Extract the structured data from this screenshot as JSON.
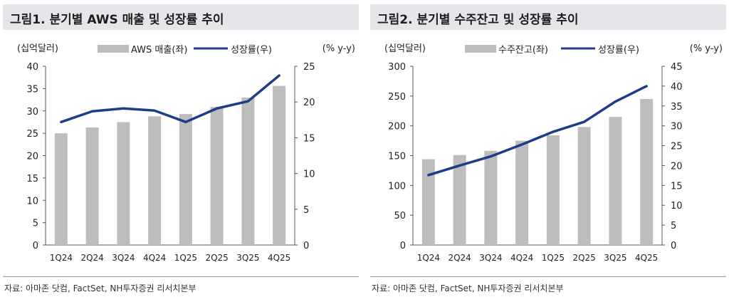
{
  "colors": {
    "bar": "#bdbdbd",
    "line": "#1f3c88",
    "axis": "#555555",
    "title_bg": "#e4e6ea"
  },
  "chart_data": [
    {
      "title": "그림1. 분기별 AWS 매출 및 성장률 추이",
      "type": "bar+line",
      "categories": [
        "1Q24",
        "2Q24",
        "3Q24",
        "4Q24",
        "1Q25",
        "2Q25",
        "3Q25",
        "4Q25"
      ],
      "series": [
        {
          "name": "AWS 매출(좌)",
          "type": "bar",
          "axis": "left",
          "values": [
            25.0,
            26.3,
            27.5,
            28.8,
            29.3,
            30.9,
            33.0,
            35.6
          ]
        },
        {
          "name": "성장률(우)",
          "type": "line",
          "axis": "right",
          "values": [
            17.2,
            18.7,
            19.1,
            18.8,
            17.2,
            19.1,
            20.1,
            23.7
          ]
        }
      ],
      "ylabel_left": "(십억달러)",
      "ylabel_right": "(% y-y)",
      "ylim_left": [
        0,
        40
      ],
      "ylim_right": [
        0,
        25
      ],
      "yticks_left": [
        "0",
        "5",
        "10",
        "15",
        "20",
        "25",
        "30",
        "35",
        "40"
      ],
      "yticks_right": [
        "0",
        "5",
        "10",
        "15",
        "20",
        "25"
      ],
      "legend": "top-right",
      "source": "자료: 아마존 닷컴, FactSet, NH투자증권 리서치본부"
    },
    {
      "title": "그림2. 분기별 수주잔고 및 성장률 추이",
      "type": "bar+line",
      "categories": [
        "1Q24",
        "2Q24",
        "3Q24",
        "4Q24",
        "1Q25",
        "2Q25",
        "3Q25",
        "4Q25"
      ],
      "series": [
        {
          "name": "수주잔고(좌)",
          "type": "bar",
          "axis": "left",
          "values": [
            144,
            151,
            158,
            175,
            184,
            198,
            215,
            245
          ]
        },
        {
          "name": "성장률(우)",
          "type": "line",
          "axis": "right",
          "values": [
            17.6,
            20.0,
            22.3,
            25.3,
            28.5,
            31.0,
            36.1,
            40.0
          ]
        }
      ],
      "ylabel_left": "(십억달러)",
      "ylabel_right": "(% y-y)",
      "ylim_left": [
        0,
        300
      ],
      "ylim_right": [
        0,
        45
      ],
      "yticks_left": [
        "0",
        "50",
        "100",
        "150",
        "200",
        "250",
        "300"
      ],
      "yticks_right": [
        "0",
        "5",
        "10",
        "15",
        "20",
        "25",
        "30",
        "35",
        "40",
        "45"
      ],
      "legend": "top-right",
      "source": "자료: 아마존 닷컴, FactSet, NH투자증권 리서치본부"
    }
  ]
}
